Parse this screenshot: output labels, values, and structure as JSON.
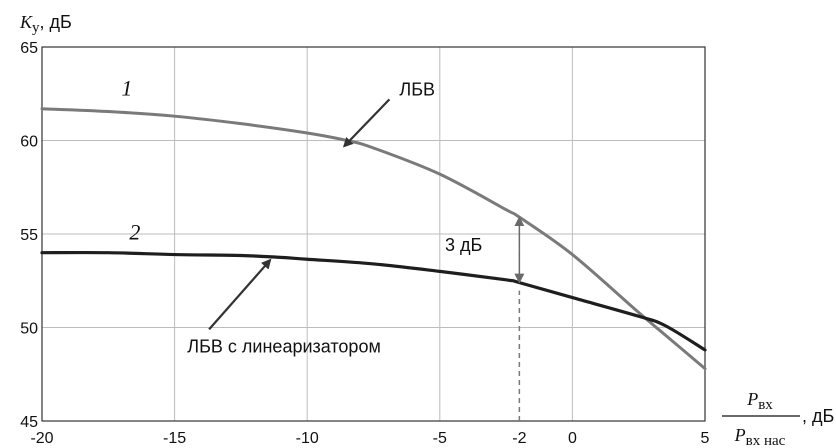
{
  "chart_data": {
    "type": "line",
    "title": "",
    "ylabel": "Kу, дБ",
    "ylabel_parts": {
      "symbol": "K",
      "subscript": "у",
      "unit": ", дБ"
    },
    "xlabel_parts": {
      "numerator_symbol": "P",
      "numerator_subscript": "вх",
      "denominator_symbol": "P",
      "denominator_subscript": "вх нас",
      "unit": ", дБ"
    },
    "xlim": [
      -20,
      5
    ],
    "ylim": [
      45,
      65
    ],
    "xticks": [
      -20,
      -15,
      -10,
      -5,
      -2,
      0,
      5
    ],
    "yticks": [
      45,
      50,
      55,
      60,
      65
    ],
    "grid_x": [
      -20,
      -15,
      -10,
      -5,
      0,
      5
    ],
    "grid_y": [
      45,
      50,
      55,
      60,
      65
    ],
    "grid": true,
    "series": [
      {
        "name": "ЛБВ",
        "number": "1",
        "color": "#7a7a7a",
        "x": [
          -20,
          -17.5,
          -15,
          -12.5,
          -10,
          -8.5,
          -7.5,
          -5,
          -2.5,
          -2,
          0,
          2.5,
          3.5,
          5
        ],
        "y": [
          61.7,
          61.55,
          61.3,
          60.9,
          60.4,
          60.0,
          59.6,
          58.2,
          56.3,
          55.9,
          53.9,
          50.8,
          49.6,
          47.8
        ]
      },
      {
        "name": "ЛБВ с линеаризатором",
        "number": "2",
        "color": "#1e1e1e",
        "x": [
          -20,
          -17.5,
          -15,
          -12.5,
          -11,
          -10,
          -7.5,
          -5,
          -2.5,
          -2,
          0,
          2.5,
          3.5,
          5
        ],
        "y": [
          54.0,
          54.0,
          53.9,
          53.85,
          53.75,
          53.65,
          53.4,
          53.0,
          52.55,
          52.4,
          51.6,
          50.6,
          50.1,
          48.8
        ]
      }
    ],
    "annotations": [
      {
        "text": "ЛБВ",
        "arrow_from": [
          -6.9,
          62.2
        ],
        "arrow_to": [
          -8.6,
          59.7
        ]
      },
      {
        "text": "ЛБВ с линеаризатором",
        "arrow_from": [
          -13.7,
          49.9
        ],
        "arrow_to": [
          -11.4,
          53.6
        ]
      }
    ],
    "curve_numbers": [
      {
        "text": "1",
        "x": -16.8,
        "y": 62.4
      },
      {
        "text": "2",
        "x": -16.5,
        "y": 54.7
      }
    ],
    "gain_difference": {
      "text": "3 дБ",
      "x": -2,
      "y_top": 55.9,
      "y_bottom": 52.4,
      "label_x": -4.1,
      "label_y": 54.1
    }
  }
}
